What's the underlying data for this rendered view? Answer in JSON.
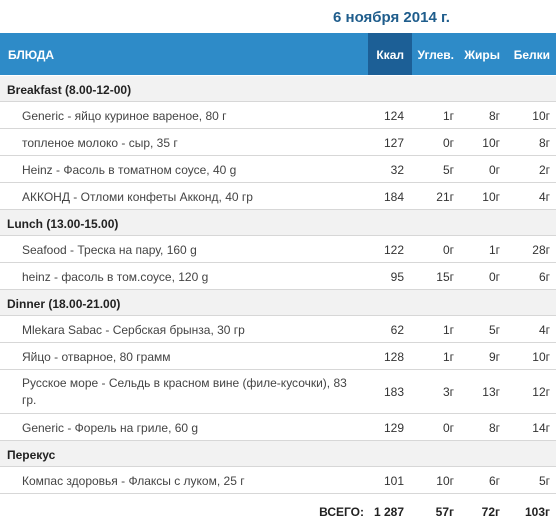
{
  "date": "6 ноября 2014 г.",
  "header": {
    "dishes": "БЛЮДА",
    "kcal": "Ккал",
    "carbs": "Углев.",
    "fats": "Жиры",
    "proteins": "Белки"
  },
  "rows": [
    {
      "type": "group",
      "label": "Breakfast (8.00-12-00)"
    },
    {
      "type": "item",
      "name": "Generic - яйцо куриное вареное, 80 г",
      "kcal": "124",
      "carbs": "1г",
      "fats": "8г",
      "proteins": "10г"
    },
    {
      "type": "item",
      "name": "топленое молоко - сыр, 35 г",
      "kcal": "127",
      "carbs": "0г",
      "fats": "10г",
      "proteins": "8г"
    },
    {
      "type": "item",
      "name": "Heinz - Фасоль в томатном соусе, 40 g",
      "kcal": "32",
      "carbs": "5г",
      "fats": "0г",
      "proteins": "2г"
    },
    {
      "type": "item",
      "name": "АККОНД - Отломи конфеты Акконд, 40 гр",
      "kcal": "184",
      "carbs": "21г",
      "fats": "10г",
      "proteins": "4г"
    },
    {
      "type": "group",
      "label": "Lunch (13.00-15.00)"
    },
    {
      "type": "item",
      "name": "Seafood - Треска на пару, 160 g",
      "kcal": "122",
      "carbs": "0г",
      "fats": "1г",
      "proteins": "28г"
    },
    {
      "type": "item",
      "name": "heinz - фасоль в том.соусе, 120 g",
      "kcal": "95",
      "carbs": "15г",
      "fats": "0г",
      "proteins": "6г"
    },
    {
      "type": "group",
      "label": "Dinner (18.00-21.00)"
    },
    {
      "type": "item",
      "name": "Mlekara Sabac - Сербская брынза, 30 гр",
      "kcal": "62",
      "carbs": "1г",
      "fats": "5г",
      "proteins": "4г"
    },
    {
      "type": "item",
      "name": "Яйцо - отварное, 80 грамм",
      "kcal": "128",
      "carbs": "1г",
      "fats": "9г",
      "proteins": "10г"
    },
    {
      "type": "item",
      "name": "Русское море - Сельдь в красном вине (филе-кусочки), 83 гр.",
      "kcal": "183",
      "carbs": "3г",
      "fats": "13г",
      "proteins": "12г",
      "tall": true
    },
    {
      "type": "item",
      "name": "Generic - Форель на гриле, 60 g",
      "kcal": "129",
      "carbs": "0г",
      "fats": "8г",
      "proteins": "14г"
    },
    {
      "type": "group",
      "label": "Перекус"
    },
    {
      "type": "item",
      "name": "Компас здоровья - Флаксы с луком, 25 г",
      "kcal": "101",
      "carbs": "10г",
      "fats": "6г",
      "proteins": "5г"
    }
  ],
  "total": {
    "label": "ВСЕГО:",
    "kcal": "1 287",
    "carbs": "57г",
    "fats": "72г",
    "proteins": "103г"
  },
  "colors": {
    "header_bg": "#2e8bc8",
    "kcal_header_bg": "#1c5f96",
    "date_text": "#1f5d8c",
    "group_bg": "#f2f2f2"
  }
}
